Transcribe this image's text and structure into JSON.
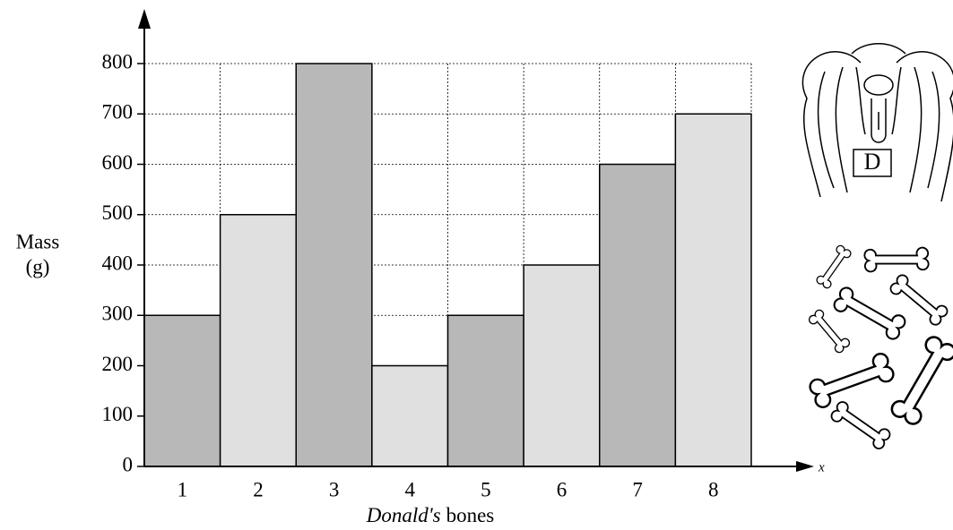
{
  "chart_data": {
    "type": "bar",
    "categories": [
      "1",
      "2",
      "3",
      "4",
      "5",
      "6",
      "7",
      "8"
    ],
    "values": [
      300,
      500,
      800,
      200,
      300,
      400,
      600,
      700
    ],
    "colors": [
      "#b8b8b8",
      "#e0e0e0",
      "#b8b8b8",
      "#e0e0e0",
      "#b8b8b8",
      "#e0e0e0",
      "#b8b8b8",
      "#e0e0e0"
    ],
    "ylim": [
      0,
      800
    ],
    "yticks": [
      0,
      100,
      200,
      300,
      400,
      500,
      600,
      700,
      800
    ],
    "grid": true,
    "ylabel": [
      "Mass",
      "(g)"
    ],
    "xlabel": [
      "Donald's",
      "bones"
    ],
    "x_axis_symbol": "x",
    "illustration_label": "D"
  }
}
